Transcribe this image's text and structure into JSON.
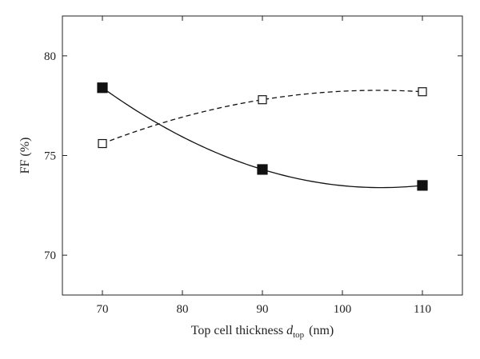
{
  "chart_data": {
    "type": "line",
    "xlabel": {
      "main": "Top cell thickness ",
      "var": "d",
      "sub": "top",
      "unit": "(nm)"
    },
    "ylabel": "FF (%)",
    "xlim": [
      65,
      115
    ],
    "ylim": [
      68,
      82
    ],
    "xticks": [
      70,
      80,
      90,
      100,
      110
    ],
    "yticks": [
      70,
      75,
      80
    ],
    "series": [
      {
        "marker": "filled-square",
        "line": "solid",
        "x": [
          70,
          90,
          110
        ],
        "y": [
          78.4,
          74.3,
          73.5
        ]
      },
      {
        "marker": "open-square",
        "line": "dashed",
        "x": [
          70,
          90,
          110
        ],
        "y": [
          75.6,
          77.8,
          78.2
        ]
      }
    ],
    "grid": false,
    "legend": "none"
  }
}
